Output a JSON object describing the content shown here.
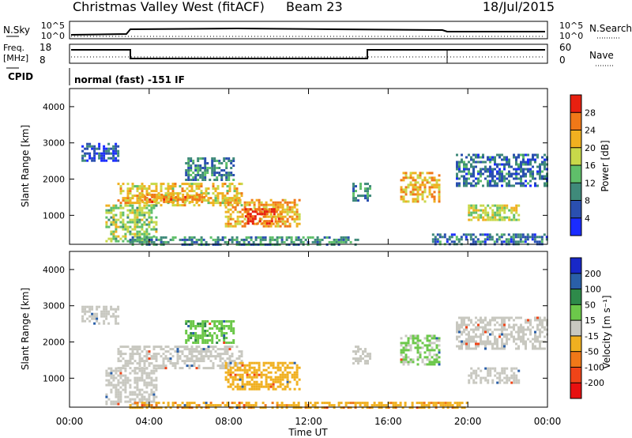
{
  "header": {
    "title": "Christmas Valley West (fitACF)",
    "beam": "Beam 23",
    "date": "18/Jul/2015"
  },
  "top_panels": {
    "nsky_label": "N.Sky",
    "nsky_ticks": [
      "10^5",
      "10^0"
    ],
    "nsearch_label": "N.Search",
    "nsearch_ticks": [
      "10^5",
      "10^0"
    ],
    "freq_label": "Freq.",
    "freq_unit": "[MHz]",
    "freq_ticks": [
      "18",
      "8"
    ],
    "nave_label": "Nave",
    "nave_ticks": [
      "60",
      "0"
    ],
    "cpid_label": "CPID",
    "cpid_text": "normal (fast) -151 IF"
  },
  "chart_data": [
    {
      "type": "heatmap",
      "name": "power",
      "ylabel": "Slant Range [km]",
      "yticks": [
        "1000",
        "2000",
        "3000",
        "4000"
      ],
      "ylim": [
        200,
        4500
      ],
      "xlim": [
        0,
        24
      ],
      "colorbar": {
        "label": "Power [dB]",
        "ticks": [
          "4",
          "8",
          "12",
          "16",
          "20",
          "24",
          "28"
        ],
        "colors": [
          "#1a2cff",
          "#2a4fb0",
          "#3f8a7a",
          "#5fbf6a",
          "#c8d84a",
          "#f0b020",
          "#f07818",
          "#e82010"
        ]
      },
      "patches": [
        {
          "t": [
            0.6,
            2.5
          ],
          "r": [
            2500,
            3000
          ],
          "v": 6
        },
        {
          "t": [
            2.4,
            8.6
          ],
          "r": [
            1250,
            1900
          ],
          "v": 20
        },
        {
          "t": [
            3.5,
            6.8
          ],
          "r": [
            1400,
            1600
          ],
          "v": 24
        },
        {
          "t": [
            7.8,
            11.6
          ],
          "r": [
            700,
            1450
          ],
          "v": 22
        },
        {
          "t": [
            8.8,
            10.6
          ],
          "r": [
            800,
            1200
          ],
          "v": 28
        },
        {
          "t": [
            1.8,
            4.4
          ],
          "r": [
            300,
            1300
          ],
          "v": 16
        },
        {
          "t": [
            5.8,
            8.2
          ],
          "r": [
            1950,
            2600
          ],
          "v": 10
        },
        {
          "t": [
            14.2,
            15.1
          ],
          "r": [
            1400,
            1900
          ],
          "v": 10
        },
        {
          "t": [
            16.6,
            18.6
          ],
          "r": [
            1350,
            2200
          ],
          "v": 22
        },
        {
          "t": [
            19.4,
            24.0
          ],
          "r": [
            1800,
            2700
          ],
          "v": 8
        },
        {
          "t": [
            20.0,
            22.6
          ],
          "r": [
            850,
            1300
          ],
          "v": 18
        },
        {
          "t": [
            18.2,
            24.0
          ],
          "r": [
            200,
            500
          ],
          "v": 8
        },
        {
          "t": [
            3.0,
            14.5
          ],
          "r": [
            200,
            420
          ],
          "v": 10
        }
      ]
    },
    {
      "type": "heatmap",
      "name": "velocity",
      "ylabel": "Slant Range [km]",
      "yticks": [
        "1000",
        "2000",
        "3000",
        "4000"
      ],
      "ylim": [
        200,
        4500
      ],
      "xlim": [
        0,
        24
      ],
      "xticks": [
        "00:00",
        "04:00",
        "08:00",
        "12:00",
        "16:00",
        "20:00",
        "00:00"
      ],
      "xlabel": "Time UT",
      "colorbar": {
        "label": "Velocity [m s⁻¹]",
        "ticks": [
          "200",
          "100",
          "50",
          "15",
          "-15",
          "-50",
          "-100",
          "-200"
        ],
        "colors": [
          "#1828c8",
          "#2a5fa8",
          "#2e8a4a",
          "#6cc84a",
          "#c8c8c0",
          "#f0b020",
          "#f07818",
          "#f04418",
          "#e81010"
        ]
      },
      "patches": [
        {
          "t": [
            0.6,
            2.5
          ],
          "r": [
            2500,
            3000
          ],
          "v": 0
        },
        {
          "t": [
            2.4,
            8.6
          ],
          "r": [
            1250,
            1900
          ],
          "v": 0
        },
        {
          "t": [
            7.8,
            11.6
          ],
          "r": [
            700,
            1450
          ],
          "v": -30
        },
        {
          "t": [
            5.8,
            8.2
          ],
          "r": [
            1950,
            2600
          ],
          "v": 40
        },
        {
          "t": [
            1.8,
            4.4
          ],
          "r": [
            300,
            1300
          ],
          "v": 0
        },
        {
          "t": [
            14.2,
            15.1
          ],
          "r": [
            1400,
            1900
          ],
          "v": 0
        },
        {
          "t": [
            16.6,
            18.6
          ],
          "r": [
            1350,
            2200
          ],
          "v": 20
        },
        {
          "t": [
            19.4,
            24.0
          ],
          "r": [
            1800,
            2700
          ],
          "v": 0
        },
        {
          "t": [
            20.0,
            22.6
          ],
          "r": [
            850,
            1300
          ],
          "v": 0
        },
        {
          "t": [
            3.0,
            20.0
          ],
          "r": [
            200,
            350
          ],
          "v": -40
        }
      ]
    }
  ]
}
